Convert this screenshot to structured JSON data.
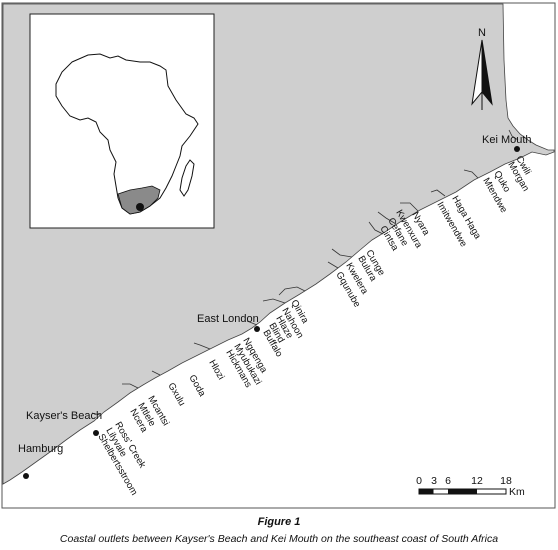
{
  "map": {
    "colors": {
      "land": "#cfcfcf",
      "sea": "#ffffff",
      "frame": "#555555",
      "highlight": "#8a8a8a"
    },
    "north_label": "N",
    "towns": [
      {
        "id": "kei-mouth",
        "name": "Kei Mouth"
      },
      {
        "id": "east-london",
        "name": "East London"
      },
      {
        "id": "kaysers-beach",
        "name": "Kayser's Beach"
      },
      {
        "id": "hamburg",
        "name": "Hamburg"
      }
    ],
    "rivers": [
      "Cwili",
      "Morgan",
      "Quko",
      "Mtendwe",
      "Haga Haga",
      "Imitwendwe",
      "Nyara",
      "Kwenxura",
      "Cefane",
      "Cintsa",
      "Cunge",
      "Bulura",
      "Kwelera",
      "Gqunube",
      "Qinira",
      "Nahoon",
      "Hlaze",
      "Blind",
      "Buffalo",
      "Ngqenga",
      "Myubukazi",
      "Hickmans",
      "Hlozi",
      "Goda",
      "Gxulu",
      "Mcantsi",
      "Mtlele",
      "Ncera",
      "Ross' Creek",
      "Lilyvale",
      "Shelbertsstroom"
    ],
    "scale": {
      "ticks": [
        "0",
        "3",
        "6",
        "12",
        "18"
      ],
      "unit": "Km"
    }
  },
  "caption": {
    "title": "Figure 1",
    "text": "Coastal outlets between Kayser's Beach and Kei Mouth on the southeast coast of South Africa"
  }
}
